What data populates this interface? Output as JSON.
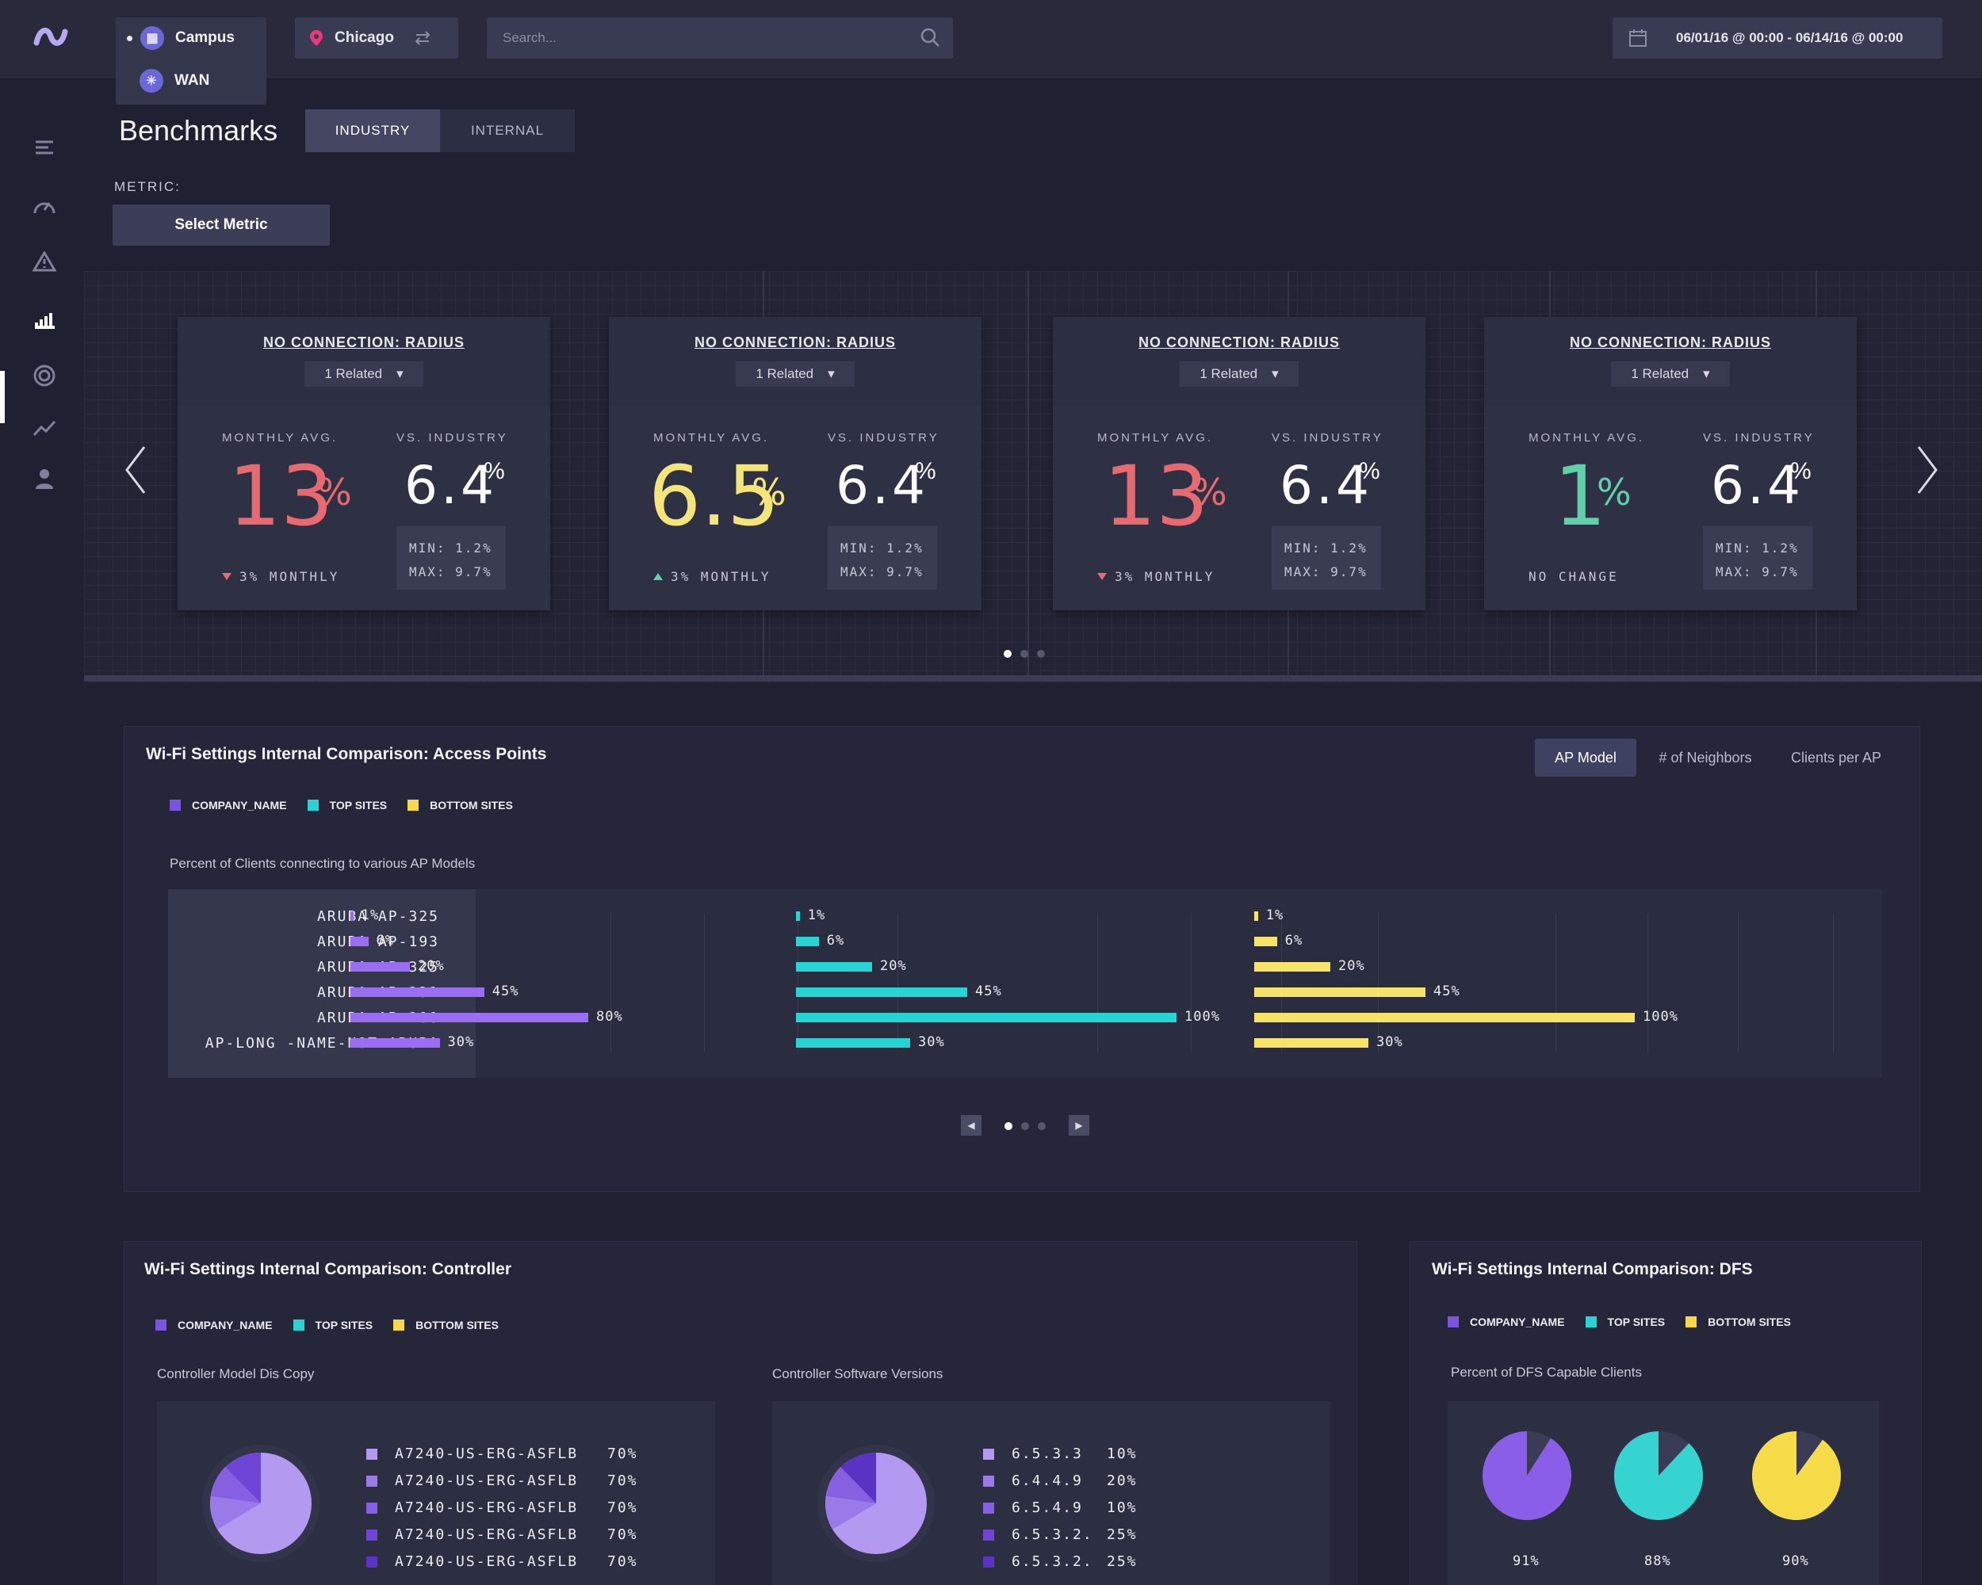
{
  "topbar": {
    "network_options": [
      {
        "label": "Campus",
        "selected": true
      },
      {
        "label": "WAN",
        "selected": false
      }
    ],
    "location": "Chicago",
    "search_placeholder": "Search...",
    "date_range": "06/01/16 @ 00:00 - 06/14/16 @ 00:00"
  },
  "sidebar": {
    "items": [
      "menu-icon",
      "speedometer-icon",
      "alert-icon",
      "benchmarks-icon",
      "target-icon",
      "trend-icon",
      "user-icon"
    ],
    "active_index": 3
  },
  "header": {
    "title": "Benchmarks",
    "tabs": [
      {
        "label": "INDUSTRY",
        "active": true
      },
      {
        "label": "INTERNAL",
        "active": false
      }
    ],
    "metric_label": "METRIC:",
    "metric_button": "Select Metric"
  },
  "cards": [
    {
      "title": "NO CONNECTION: RADIUS",
      "related": "1 Related",
      "monthly_label": "MONTHLY AVG.",
      "monthly_value": "13",
      "monthly_color": "#e76a71",
      "industry_label": "VS. INDUSTRY",
      "industry_value": "6.4",
      "min": "MIN: 1.2%",
      "max": "MAX: 9.7%",
      "trend": "3% MONTHLY",
      "trend_dir": "down"
    },
    {
      "title": "NO CONNECTION: RADIUS",
      "related": "1 Related",
      "monthly_label": "MONTHLY AVG.",
      "monthly_value": "6.5",
      "monthly_color": "#f4e57a",
      "industry_label": "VS. INDUSTRY",
      "industry_value": "6.4",
      "min": "MIN: 1.2%",
      "max": "MAX: 9.7%",
      "trend": "3% MONTHLY",
      "trend_dir": "up"
    },
    {
      "title": "NO CONNECTION: RADIUS",
      "related": "1 Related",
      "monthly_label": "MONTHLY AVG.",
      "monthly_value": "13",
      "monthly_color": "#e76a71",
      "industry_label": "VS. INDUSTRY",
      "industry_value": "6.4",
      "min": "MIN: 1.2%",
      "max": "MAX: 9.7%",
      "trend": "3% MONTHLY",
      "trend_dir": "down"
    },
    {
      "title": "NO CONNECTION: RADIUS",
      "related": "1 Related",
      "monthly_label": "MONTHLY AVG.",
      "monthly_value": "1",
      "monthly_color": "#5fd0a9",
      "industry_label": "VS. INDUSTRY",
      "industry_value": "6.4",
      "min": "MIN: 1.2%",
      "max": "MAX: 9.7%",
      "trend": "NO CHANGE",
      "trend_dir": "none"
    }
  ],
  "percent_sign": "%",
  "legend": [
    {
      "label": "COMPANY_NAME",
      "color": "#7a55e0"
    },
    {
      "label": "TOP SITES",
      "color": "#2ad3d3"
    },
    {
      "label": "BOTTOM SITES",
      "color": "#f7d84a"
    }
  ],
  "ap_panel": {
    "title": "Wi-Fi Settings Internal Comparison: Access Points",
    "segments": [
      {
        "label": "AP Model",
        "active": true
      },
      {
        "label": "# of Neighbors",
        "active": false
      },
      {
        "label": "Clients per AP",
        "active": false
      }
    ],
    "subtitle": "Percent of Clients connecting to various AP Models"
  },
  "chart_data": {
    "type": "bar",
    "orientation": "horizontal",
    "categories": [
      "ARUBA AP-325",
      "ARUBA AP-193",
      "ARUBA AP-325",
      "ARUBA AP-231",
      "ARUBA AP-100",
      "AP-LONG -NAME-NOT-ARUBA"
    ],
    "series": [
      {
        "name": "COMPANY_NAME",
        "color": "#9a6ef0",
        "values": [
          1,
          6,
          20,
          45,
          80,
          30
        ]
      },
      {
        "name": "TOP SITES",
        "color": "#2ad3d3",
        "values": [
          1,
          6,
          20,
          45,
          100,
          30
        ]
      },
      {
        "name": "BOTTOM SITES",
        "color": "#f7e36a",
        "values": [
          1,
          6,
          20,
          45,
          100,
          30
        ]
      }
    ],
    "unit": "%",
    "xlim": [
      0,
      100
    ]
  },
  "controller_panel": {
    "title": "Wi-Fi Settings Internal Comparison: Controller",
    "model_subtitle": "Controller Model Dis Copy",
    "software_subtitle": "Controller Software Versions",
    "models": [
      {
        "label": "A7240-US-ERG-ASFLB",
        "value": "70%",
        "color": "#b39af0"
      },
      {
        "label": "A7240-US-ERG-ASFLB",
        "value": "70%",
        "color": "#9a7ae8"
      },
      {
        "label": "A7240-US-ERG-ASFLB",
        "value": "70%",
        "color": "#8660e0"
      },
      {
        "label": "A7240-US-ERG-ASFLB",
        "value": "70%",
        "color": "#6f45d6"
      },
      {
        "label": "A7240-US-ERG-ASFLB",
        "value": "70%",
        "color": "#5a32c4"
      }
    ],
    "versions": [
      {
        "label": "6.5.3.3",
        "value": "10%",
        "color": "#b39af0"
      },
      {
        "label": "6.4.4.9",
        "value": "20%",
        "color": "#9a7ae8"
      },
      {
        "label": "6.5.4.9",
        "value": "10%",
        "color": "#8660e0"
      },
      {
        "label": "6.5.3.2.",
        "value": "25%",
        "color": "#6f45d6"
      },
      {
        "label": "6.5.3.2.",
        "value": "25%",
        "color": "#5a32c4"
      }
    ]
  },
  "dfs_panel": {
    "title": "Wi-Fi Settings Internal Comparison: DFS",
    "subtitle": "Percent of DFS Capable Clients",
    "pies": [
      {
        "value": "91%",
        "fraction": 0.91,
        "color": "#8b5ee8"
      },
      {
        "value": "88%",
        "fraction": 0.88,
        "color": "#35d4d0"
      },
      {
        "value": "90%",
        "fraction": 0.9,
        "color": "#f7dc4a"
      }
    ]
  }
}
